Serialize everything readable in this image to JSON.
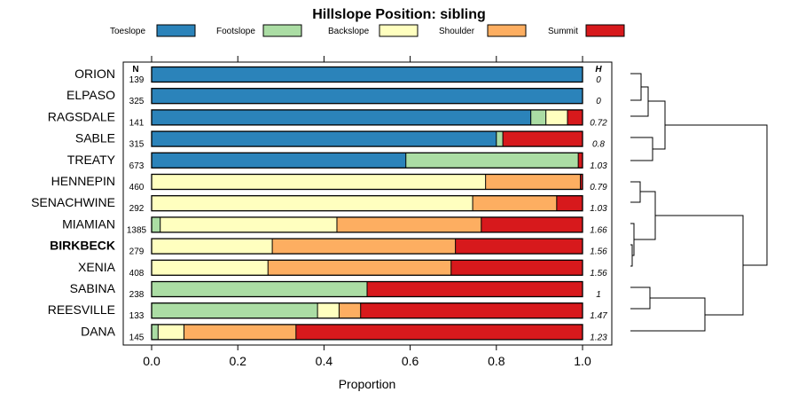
{
  "chart_data": {
    "type": "stacked-bar-horizontal",
    "title": "Hillslope Position: sibling",
    "xlabel": "Proportion",
    "xlim": [
      0,
      1
    ],
    "xticks": [
      "0.0",
      "0.2",
      "0.4",
      "0.6",
      "0.8",
      "1.0"
    ],
    "n_header": "N",
    "h_header": "H",
    "categories": [
      "Toeslope",
      "Footslope",
      "Backslope",
      "Shoulder",
      "Summit"
    ],
    "colors": [
      "#2b83ba",
      "#abdda4",
      "#ffffbf",
      "#fdae61",
      "#d7191c"
    ],
    "rows": [
      {
        "name": "ORION",
        "n": "139",
        "h": "0",
        "bold": false,
        "values": [
          1.0,
          0,
          0,
          0,
          0
        ]
      },
      {
        "name": "ELPASO",
        "n": "325",
        "h": "0",
        "bold": false,
        "values": [
          1.0,
          0,
          0,
          0,
          0
        ]
      },
      {
        "name": "RAGSDALE",
        "n": "141",
        "h": "0.72",
        "bold": false,
        "values": [
          0.88,
          0.035,
          0.05,
          0.0,
          0.035
        ]
      },
      {
        "name": "SABLE",
        "n": "315",
        "h": "0.8",
        "bold": false,
        "values": [
          0.8,
          0.015,
          0.0,
          0.0,
          0.185
        ]
      },
      {
        "name": "TREATY",
        "n": "673",
        "h": "1.03",
        "bold": false,
        "values": [
          0.59,
          0.4,
          0.0,
          0.0,
          0.01
        ]
      },
      {
        "name": "HENNEPIN",
        "n": "460",
        "h": "0.79",
        "bold": false,
        "values": [
          0.0,
          0.0,
          0.775,
          0.22,
          0.005
        ]
      },
      {
        "name": "SENACHWINE",
        "n": "292",
        "h": "1.03",
        "bold": false,
        "values": [
          0.0,
          0.0,
          0.745,
          0.195,
          0.06
        ]
      },
      {
        "name": "MIAMIAN",
        "n": "1385",
        "h": "1.66",
        "bold": false,
        "values": [
          0.0,
          0.02,
          0.41,
          0.335,
          0.235
        ]
      },
      {
        "name": "BIRKBECK",
        "n": "279",
        "h": "1.56",
        "bold": true,
        "values": [
          0.0,
          0.0,
          0.28,
          0.425,
          0.295
        ]
      },
      {
        "name": "XENIA",
        "n": "408",
        "h": "1.56",
        "bold": false,
        "values": [
          0.0,
          0.0,
          0.27,
          0.425,
          0.305
        ]
      },
      {
        "name": "SABINA",
        "n": "238",
        "h": "1",
        "bold": false,
        "values": [
          0.0,
          0.5,
          0.0,
          0.0,
          0.5
        ]
      },
      {
        "name": "REESVILLE",
        "n": "133",
        "h": "1.47",
        "bold": false,
        "values": [
          0.0,
          0.385,
          0.05,
          0.05,
          0.515
        ]
      },
      {
        "name": "DANA",
        "n": "145",
        "h": "1.23",
        "bold": false,
        "values": [
          0.0,
          0.015,
          0.06,
          0.26,
          0.665
        ]
      }
    ]
  }
}
